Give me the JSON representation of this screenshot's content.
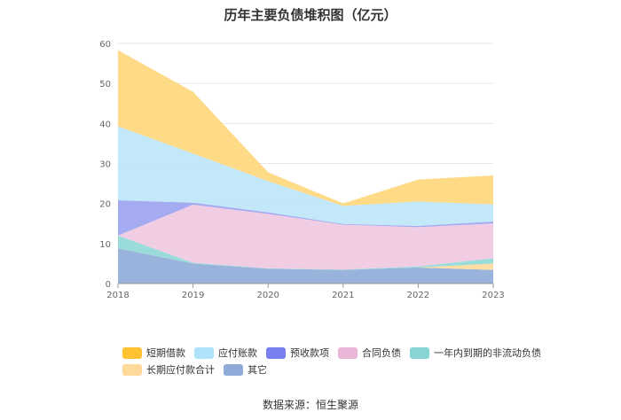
{
  "chart_data": {
    "type": "area",
    "title": "历年主要负债堆积图（亿元）",
    "x": [
      "2018",
      "2019",
      "2020",
      "2021",
      "2022",
      "2023"
    ],
    "ylim": [
      0,
      60
    ],
    "yticks": [
      0,
      10,
      20,
      30,
      40,
      50,
      60
    ],
    "grid": true,
    "legend_position": "bottom",
    "stacked": true,
    "series": [
      {
        "name": "其它",
        "color": "#8eabd8",
        "values": [
          8.8,
          5.0,
          3.7,
          3.4,
          4.0,
          3.4
        ]
      },
      {
        "name": "长期应付款合计",
        "color": "#ffd99a",
        "values": [
          0.0,
          0.0,
          0.0,
          0.0,
          0.0,
          1.6
        ]
      },
      {
        "name": "一年内到期的非流动负债",
        "color": "#8fd8d6",
        "values": [
          3.2,
          0.2,
          0.1,
          0.1,
          0.3,
          1.3
        ]
      },
      {
        "name": "合同负债",
        "color": "#efc8e1",
        "values": [
          0.0,
          14.5,
          13.6,
          11.2,
          9.8,
          8.7
        ]
      },
      {
        "name": "预收款项",
        "color": "#9ba2f0",
        "values": [
          8.8,
          0.5,
          0.4,
          0.2,
          0.3,
          0.5
        ]
      },
      {
        "name": "应付账款",
        "color": "#bde6f8",
        "values": [
          18.5,
          12.3,
          7.8,
          4.5,
          6.1,
          4.3
        ]
      },
      {
        "name": "短期借款",
        "color": "#ffd67a",
        "values": [
          19.0,
          15.4,
          2.2,
          0.6,
          5.5,
          7.2
        ]
      }
    ]
  },
  "legend": {
    "row1": [
      "短期借款",
      "应付账款",
      "预收款项",
      "合同负债",
      "一年内到期的非流动负债"
    ],
    "row2": [
      "长期应付款合计",
      "其它"
    ],
    "swatch_colors": {
      "短期借款": "#ffc233",
      "应付账款": "#aee3fb",
      "预收款项": "#7a7ff0",
      "合同负债": "#eab6d8",
      "一年内到期的非流动负债": "#86d5d3",
      "长期应付款合计": "#ffd99a",
      "其它": "#8eabd8"
    }
  },
  "source": "数据来源：恒生聚源"
}
